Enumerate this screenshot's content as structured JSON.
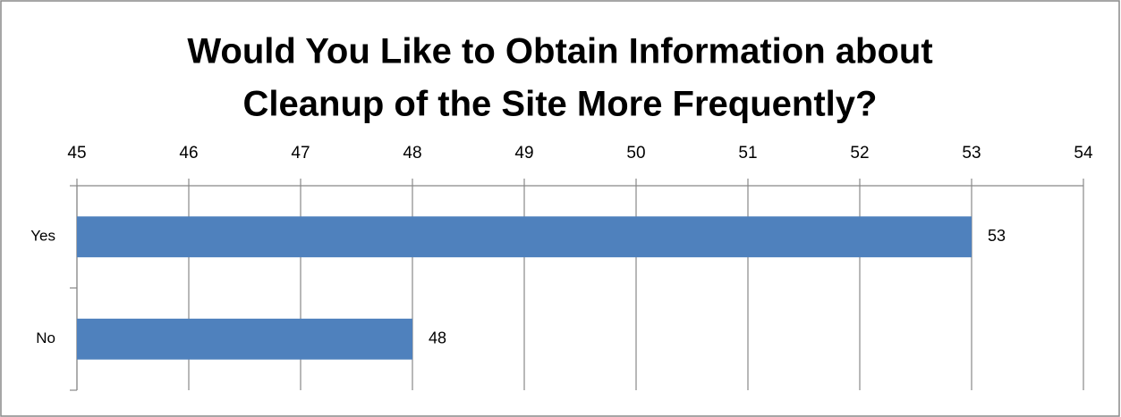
{
  "chart_data": {
    "type": "bar",
    "orientation": "horizontal",
    "title": [
      "Would You Like to Obtain Information about",
      "Cleanup of the Site More Frequently?"
    ],
    "categories": [
      "Yes",
      "No"
    ],
    "values": [
      53,
      48
    ],
    "color": "#4f81bd",
    "xlim": [
      45,
      54
    ],
    "xticks": [
      45,
      46,
      47,
      48,
      49,
      50,
      51,
      52,
      53,
      54
    ],
    "grid": true
  }
}
